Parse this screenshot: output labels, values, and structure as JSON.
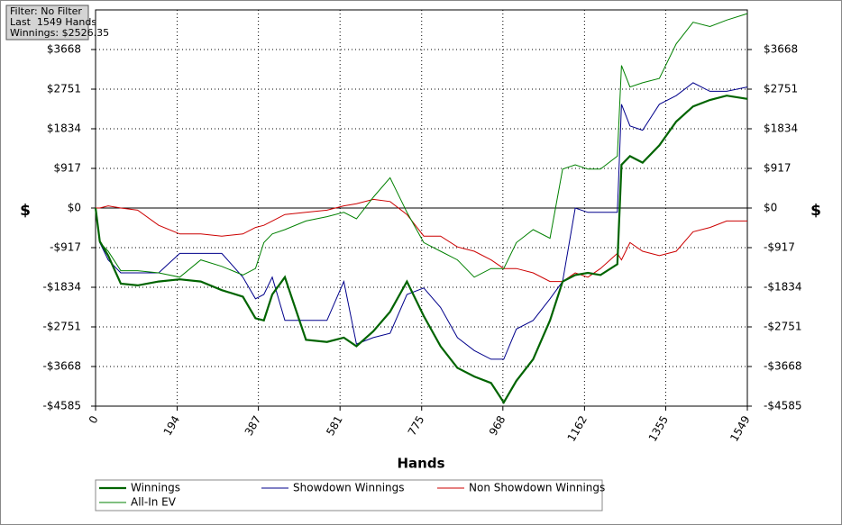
{
  "info": {
    "filter": "Filter: No Filter",
    "hands": "Last  1549 Hands",
    "winnings": "Winnings: $2526.35"
  },
  "chart_data": {
    "type": "line",
    "x_label": "Hands",
    "y_label": "$",
    "x": [
      0,
      10,
      30,
      60,
      100,
      150,
      200,
      250,
      300,
      350,
      380,
      400,
      420,
      450,
      500,
      550,
      590,
      620,
      660,
      700,
      740,
      780,
      820,
      860,
      900,
      940,
      970,
      1000,
      1040,
      1080,
      1110,
      1140,
      1170,
      1200,
      1240,
      1250,
      1270,
      1300,
      1340,
      1380,
      1420,
      1460,
      1500,
      1549
    ],
    "series": [
      {
        "name": "Winnings",
        "color": "#006400",
        "width": 2.2,
        "values": [
          0,
          -771,
          -1100,
          -1750,
          -1790,
          -1700,
          -1650,
          -1700,
          -1900,
          -2050,
          -2550,
          -2600,
          -2000,
          -1600,
          -3050,
          -3100,
          -3000,
          -3200,
          -2850,
          -2400,
          -1700,
          -2500,
          -3200,
          -3700,
          -3900,
          -4050,
          -4500,
          -4000,
          -3500,
          -2600,
          -1700,
          -1550,
          -1500,
          -1550,
          -1300,
          1000,
          1200,
          1050,
          1450,
          2000,
          2350,
          2500,
          2600,
          2526
        ]
      },
      {
        "name": "Showdown Winnings",
        "color": "#00008b",
        "width": 1,
        "values": [
          0,
          -800,
          -1200,
          -1500,
          -1500,
          -1500,
          -1050,
          -1050,
          -1050,
          -1600,
          -2100,
          -2000,
          -1600,
          -2600,
          -2600,
          -2600,
          -1700,
          -3150,
          -3000,
          -2900,
          -2000,
          -1850,
          -2300,
          -3000,
          -3300,
          -3500,
          -3500,
          -2800,
          -2600,
          -2100,
          -1700,
          0,
          -100,
          -100,
          -100,
          2400,
          1900,
          1800,
          2400,
          2600,
          2900,
          2700,
          2700,
          2800
        ]
      },
      {
        "name": "Non Showdown Winnings",
        "color": "#cc0000",
        "width": 1,
        "values": [
          0,
          0,
          50,
          0,
          -50,
          -400,
          -600,
          -600,
          -650,
          -600,
          -450,
          -400,
          -300,
          -150,
          -100,
          -50,
          50,
          100,
          200,
          150,
          -150,
          -650,
          -650,
          -900,
          -1000,
          -1200,
          -1400,
          -1400,
          -1500,
          -1700,
          -1700,
          -1500,
          -1600,
          -1400,
          -1050,
          -1200,
          -800,
          -1000,
          -1100,
          -1000,
          -550,
          -450,
          -300,
          -300
        ]
      },
      {
        "name": "All-In EV",
        "color": "#008000",
        "width": 1,
        "values": [
          0,
          -800,
          -1000,
          -1450,
          -1450,
          -1500,
          -1600,
          -1200,
          -1350,
          -1550,
          -1400,
          -800,
          -600,
          -500,
          -300,
          -200,
          -100,
          -250,
          250,
          700,
          -100,
          -800,
          -1000,
          -1200,
          -1600,
          -1400,
          -1400,
          -800,
          -500,
          -700,
          900,
          1000,
          900,
          900,
          1200,
          3300,
          2800,
          2900,
          3000,
          3800,
          4300,
          4200,
          4350,
          4500
        ]
      }
    ],
    "xlim": [
      0,
      1549
    ],
    "xticks": [
      0,
      194,
      387,
      581,
      775,
      968,
      1162,
      1355,
      1549
    ],
    "ylim": [
      -4585,
      4585
    ],
    "yticks": [
      {
        "value": 3668,
        "label": "$3668"
      },
      {
        "value": 2751,
        "label": "$2751"
      },
      {
        "value": 1834,
        "label": "$1834"
      },
      {
        "value": 917,
        "label": "$917"
      },
      {
        "value": 0,
        "label": "$0"
      },
      {
        "value": -917,
        "label": "-$917"
      },
      {
        "value": -1834,
        "label": "-$1834"
      },
      {
        "value": -2751,
        "label": "-$2751"
      },
      {
        "value": -3668,
        "label": "-$3668"
      },
      {
        "value": -4585,
        "label": "-$4585"
      }
    ],
    "grid": true
  }
}
